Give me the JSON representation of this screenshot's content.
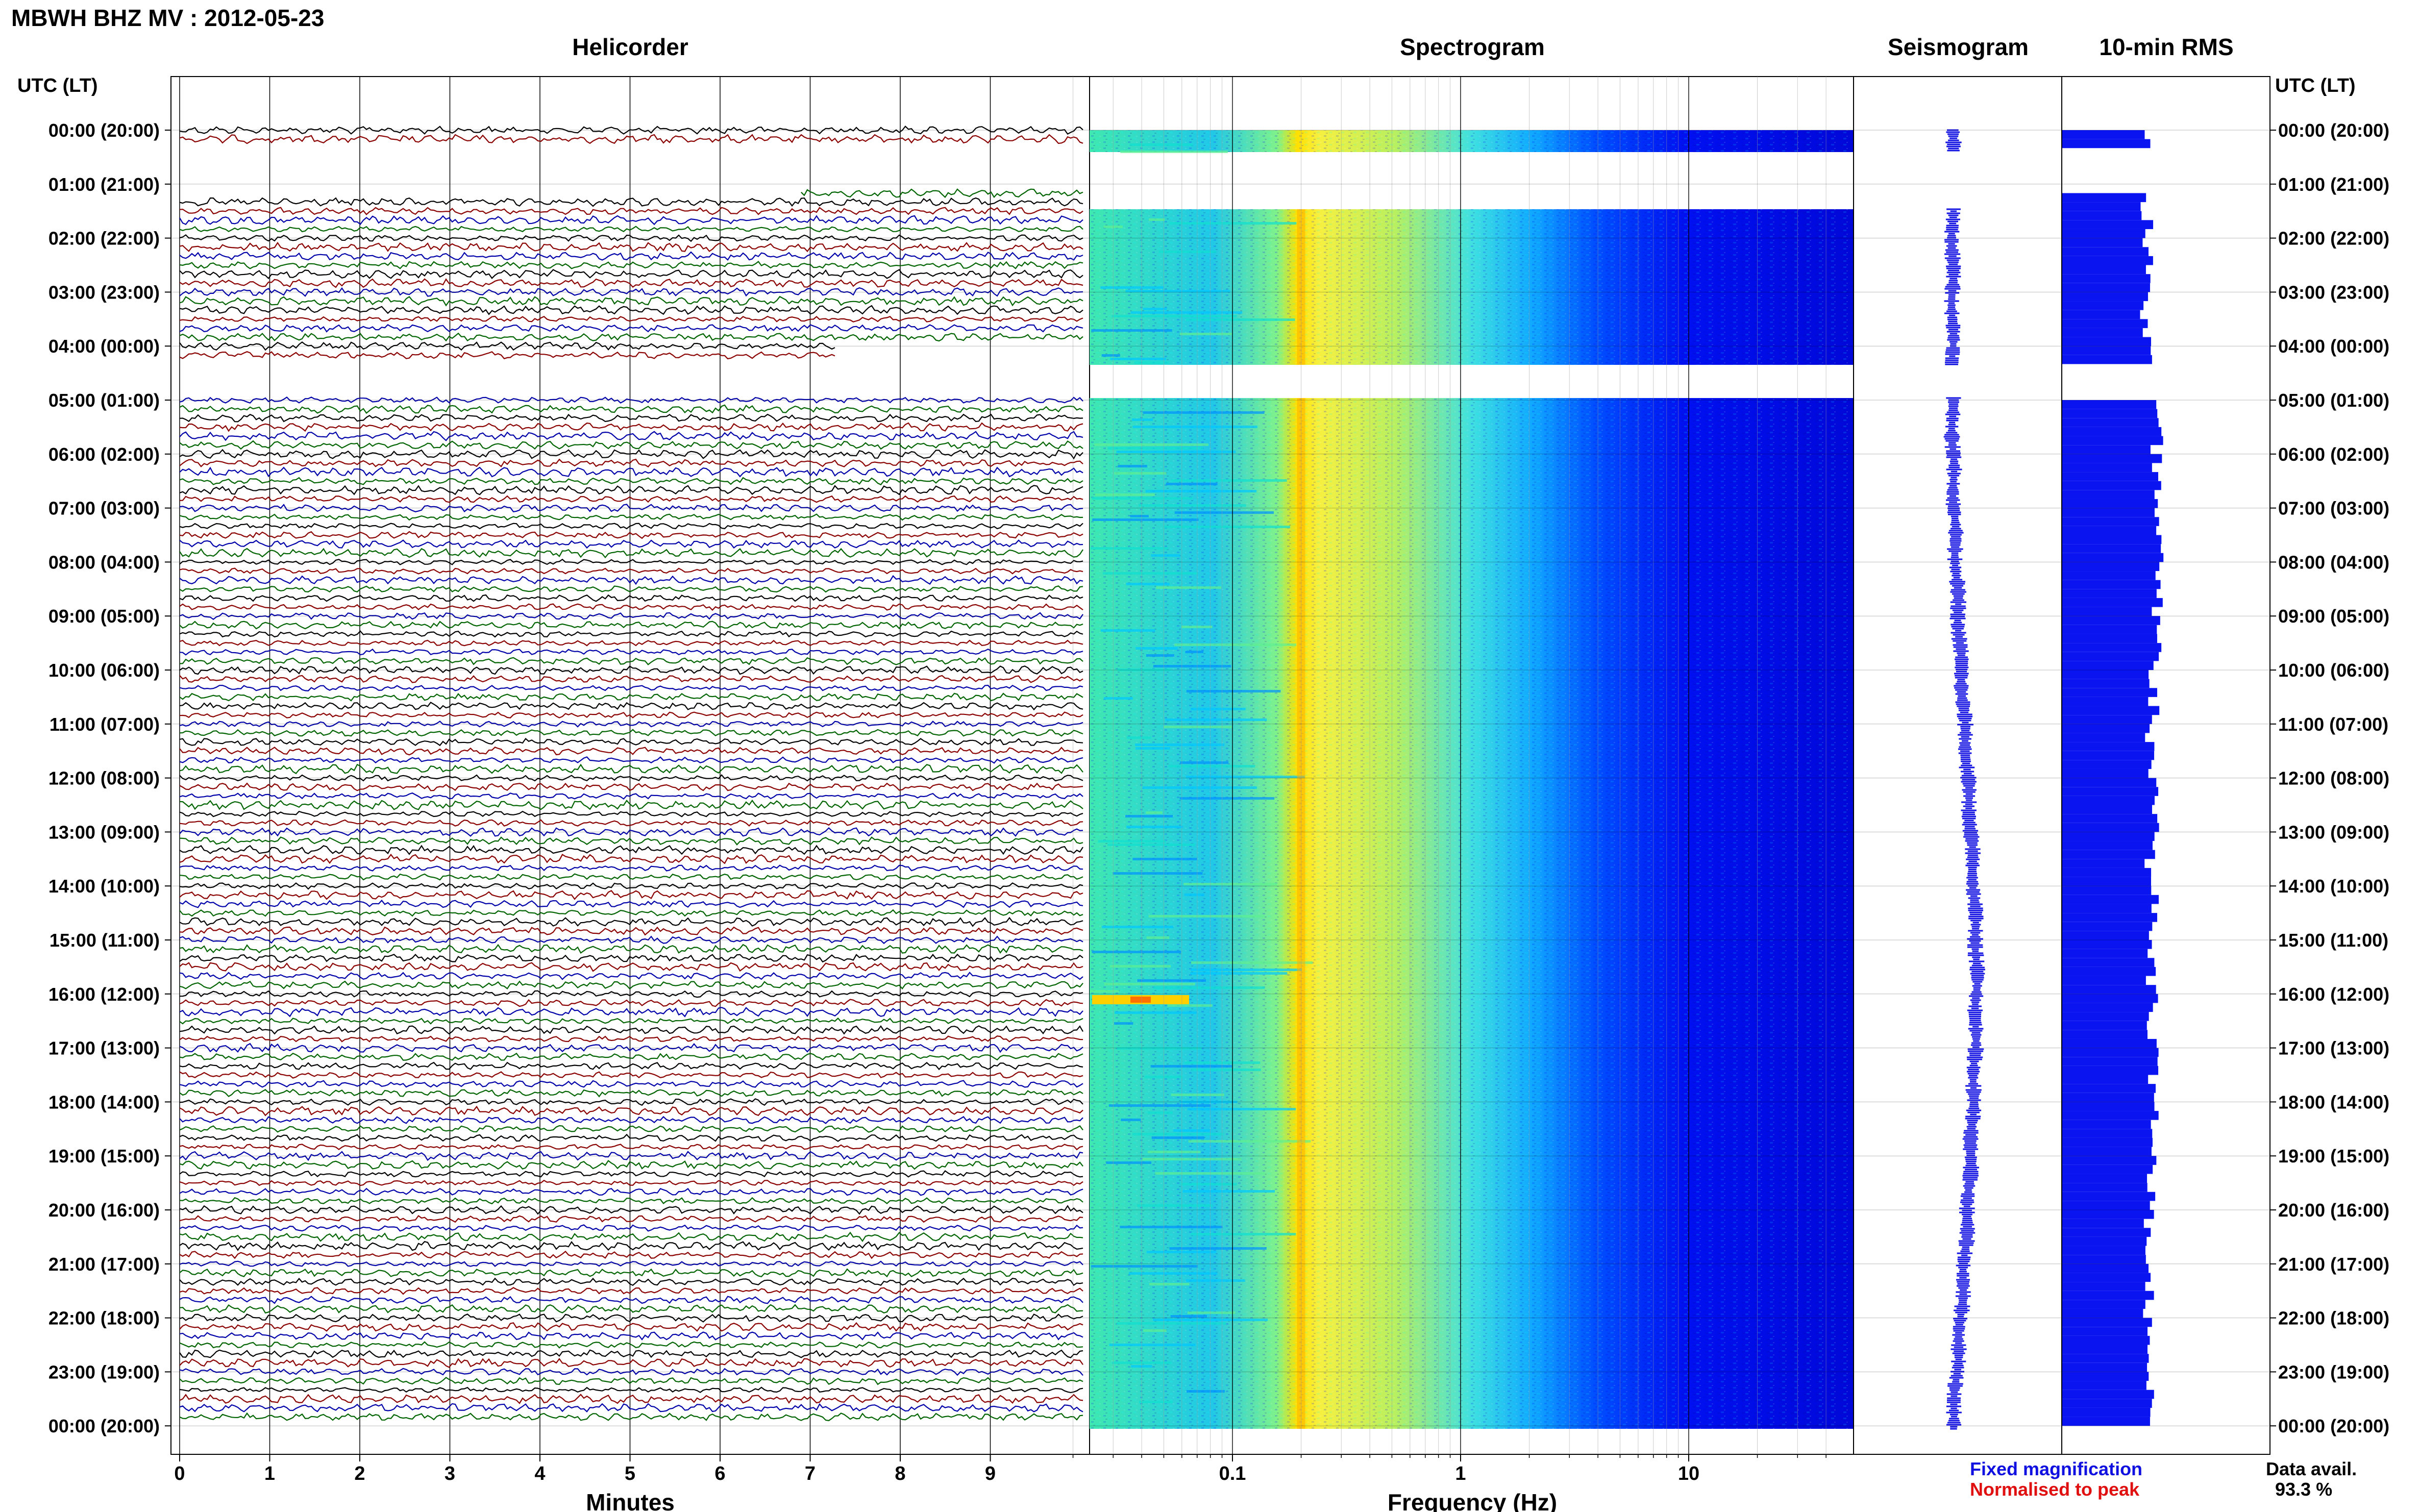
{
  "header": {
    "title": "MBWH BHZ MV : 2012-05-23",
    "time_axis_label": "UTC (LT)"
  },
  "time_labels": [
    "00:00 (20:00)",
    "01:00 (21:00)",
    "02:00 (22:00)",
    "03:00 (23:00)",
    "04:00 (00:00)",
    "05:00 (01:00)",
    "06:00 (02:00)",
    "07:00 (03:00)",
    "08:00 (04:00)",
    "09:00 (05:00)",
    "10:00 (06:00)",
    "11:00 (07:00)",
    "12:00 (08:00)",
    "13:00 (09:00)",
    "14:00 (10:00)",
    "15:00 (11:00)",
    "16:00 (12:00)",
    "17:00 (13:00)",
    "18:00 (14:00)",
    "19:00 (15:00)",
    "20:00 (16:00)",
    "21:00 (17:00)",
    "22:00 (18:00)",
    "23:00 (19:00)",
    "00:00 (20:00)"
  ],
  "panels": {
    "helicorder": {
      "title": "Helicorder",
      "xlabel": "Minutes"
    },
    "spectrogram": {
      "title": "Spectrogram",
      "xlabel": "Frequency (Hz)"
    },
    "seismogram": {
      "title": "Seismogram"
    },
    "rms": {
      "title": "10-min RMS"
    }
  },
  "legend": {
    "fixed": "Fixed magnification",
    "normalised": "Normalised to peak",
    "colors": {
      "fixed": "#1010e0",
      "normalised": "#e01010"
    }
  },
  "data_avail": {
    "label": "Data avail.",
    "value": "93.3 %"
  },
  "chart_data": [
    {
      "type": "line",
      "title": "Helicorder",
      "xlabel": "Minutes",
      "xlim": [
        0,
        10
      ],
      "xticks": [
        0,
        1,
        2,
        3,
        4,
        5,
        6,
        7,
        8,
        9
      ],
      "xtick_labels": [
        "0",
        "1",
        "2",
        "3",
        "4",
        "5",
        "6",
        "7",
        "8",
        "9"
      ],
      "trace_colors": [
        "#000000",
        "#8b0000",
        "#0000aa",
        "#006400"
      ],
      "lines_per_hour": 6,
      "hours": 24,
      "data_gaps_hours": [
        [
          0.3,
          1.1
        ],
        [
          4.2,
          4.85
        ]
      ]
    },
    {
      "type": "heatmap",
      "title": "Spectrogram",
      "xlabel": "Frequency (Hz)",
      "xscale": "log",
      "xlim": [
        0.01,
        50
      ],
      "xticks": [
        0.1,
        1,
        10
      ],
      "xtick_labels": [
        "0.1",
        "1",
        "10"
      ],
      "colormap": [
        "#00009a",
        "#0000ff",
        "#0080ff",
        "#00ffff",
        "#80ff80",
        "#ffff00",
        "#ff8000"
      ],
      "peak_frequency_hz": 0.2
    },
    {
      "type": "line",
      "title": "Seismogram",
      "color": "#1010e0"
    },
    {
      "type": "bar",
      "title": "10-min RMS",
      "color": "#0a14f0",
      "orientation": "horizontal"
    }
  ]
}
